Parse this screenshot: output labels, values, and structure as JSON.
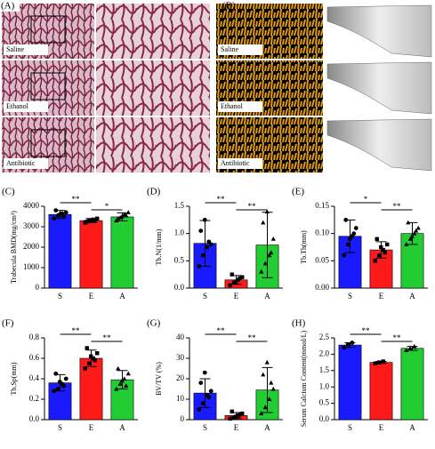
{
  "image_panels": [
    {
      "label": "(A)",
      "groups": [
        "Saline",
        "Ethanol",
        "Antibiotic"
      ]
    },
    {
      "label": "(B)",
      "groups": [
        "Saline",
        "Ethanol",
        "Antibiotic"
      ]
    }
  ],
  "chart_data": [
    {
      "type": "bar",
      "panel": "(C)",
      "ylabel": "Trabecula BMD(mg/cm³)",
      "categories": [
        "S",
        "E",
        "A"
      ],
      "colors": [
        "#1a1aff",
        "#ff1a1a",
        "#22cc33"
      ],
      "values": [
        3600,
        3300,
        3480
      ],
      "errors": [
        200,
        100,
        200
      ],
      "points": [
        [
          3400,
          3550,
          3650,
          3700,
          3800,
          3600,
          3500
        ],
        [
          3200,
          3300,
          3350,
          3400,
          3250,
          3300,
          3280
        ],
        [
          3300,
          3450,
          3600,
          3700,
          3400,
          3500,
          3550
        ]
      ],
      "ylim": [
        0,
        4000
      ],
      "yticks": [
        0,
        1000,
        2000,
        3000,
        4000
      ],
      "significance": [
        {
          "groups": [
            0,
            1
          ],
          "label": "**"
        },
        {
          "groups": [
            1,
            2
          ],
          "label": "*"
        }
      ]
    },
    {
      "type": "bar",
      "panel": "(D)",
      "ylabel": "Tb.N(1/mm)",
      "categories": [
        "S",
        "E",
        "A"
      ],
      "colors": [
        "#1a1aff",
        "#ff1a1a",
        "#22cc33"
      ],
      "values": [
        0.82,
        0.15,
        0.79
      ],
      "errors": [
        0.42,
        0.08,
        0.6
      ],
      "points": [
        [
          0.4,
          0.6,
          0.75,
          0.8,
          1.05,
          1.25,
          0.85
        ],
        [
          0.05,
          0.1,
          0.15,
          0.2,
          0.25,
          0.12,
          0.18
        ],
        [
          0.3,
          0.45,
          0.6,
          0.9,
          1.2,
          1.4,
          0.65
        ]
      ],
      "ylim": [
        0,
        1.5
      ],
      "yticks": [
        {
          "value": 0,
          "label": "0.0"
        },
        0.5,
        {
          "value": 1,
          "label": "1.0"
        },
        1.5
      ],
      "significance": [
        {
          "groups": [
            0,
            1
          ],
          "label": "**"
        },
        {
          "groups": [
            1,
            2
          ],
          "label": "**"
        }
      ]
    },
    {
      "type": "bar",
      "panel": "(E)",
      "ylabel": "Tb.Th(mm)",
      "categories": [
        "S",
        "E",
        "A"
      ],
      "colors": [
        "#1a1aff",
        "#ff1a1a",
        "#22cc33"
      ],
      "values": [
        0.095,
        0.07,
        0.1
      ],
      "errors": [
        0.03,
        0.015,
        0.02
      ],
      "points": [
        [
          0.06,
          0.08,
          0.095,
          0.11,
          0.125,
          0.09,
          0.1
        ],
        [
          0.05,
          0.06,
          0.07,
          0.08,
          0.09,
          0.075,
          0.065
        ],
        [
          0.08,
          0.09,
          0.1,
          0.11,
          0.12,
          0.095,
          0.105
        ]
      ],
      "ylim": [
        0,
        0.15
      ],
      "yticks": [
        {
          "value": 0,
          "label": "0.00"
        },
        0.05,
        {
          "value": 0.1,
          "label": "0.10"
        },
        0.15
      ],
      "significance": [
        {
          "groups": [
            0,
            1
          ],
          "label": "*"
        },
        {
          "groups": [
            1,
            2
          ],
          "label": "**"
        }
      ]
    },
    {
      "type": "bar",
      "panel": "(F)",
      "ylabel": "Tb.Sp(mm)",
      "categories": [
        "S",
        "E",
        "A"
      ],
      "colors": [
        "#1a1aff",
        "#ff1a1a",
        "#22cc33"
      ],
      "values": [
        0.36,
        0.6,
        0.39
      ],
      "errors": [
        0.08,
        0.08,
        0.09
      ],
      "points": [
        [
          0.28,
          0.3,
          0.35,
          0.4,
          0.45,
          0.37,
          0.33
        ],
        [
          0.5,
          0.55,
          0.6,
          0.65,
          0.7,
          0.62,
          0.58
        ],
        [
          0.3,
          0.35,
          0.4,
          0.45,
          0.5,
          0.38,
          0.33
        ]
      ],
      "ylim": [
        0,
        0.8
      ],
      "yticks": [
        {
          "value": 0,
          "label": "0.0"
        },
        0.2,
        0.4,
        0.6,
        0.8
      ],
      "significance": [
        {
          "groups": [
            0,
            1
          ],
          "label": "**"
        },
        {
          "groups": [
            1,
            2
          ],
          "label": "**"
        }
      ]
    },
    {
      "type": "bar",
      "panel": "(G)",
      "ylabel": "BV/TV (%)",
      "categories": [
        "S",
        "E",
        "A"
      ],
      "colors": [
        "#1a1aff",
        "#ff1a1a",
        "#22cc33"
      ],
      "values": [
        13,
        2,
        14.5
      ],
      "errors": [
        7,
        1.5,
        11
      ],
      "points": [
        [
          5,
          8,
          12,
          14,
          18,
          23,
          11
        ],
        [
          0.5,
          1,
          2,
          3,
          4,
          1.5,
          2.5
        ],
        [
          3,
          6,
          10,
          15,
          22,
          28,
          18
        ]
      ],
      "ylim": [
        0,
        40
      ],
      "yticks": [
        0,
        10,
        20,
        30,
        40
      ],
      "significance": [
        {
          "groups": [
            0,
            1
          ],
          "label": "**"
        },
        {
          "groups": [
            1,
            2
          ],
          "label": "**"
        }
      ]
    },
    {
      "type": "bar",
      "panel": "(H)",
      "ylabel": "Serum Calcium Content(mmol/L)",
      "categories": [
        "S",
        "E",
        "A"
      ],
      "colors": [
        "#1a1aff",
        "#ff1a1a",
        "#22cc33"
      ],
      "values": [
        2.28,
        1.75,
        2.18
      ],
      "errors": [
        0.07,
        0.03,
        0.06
      ],
      "points": [
        [
          2.2,
          2.3,
          2.35
        ],
        [
          1.72,
          1.75,
          1.78
        ],
        [
          2.12,
          2.18,
          2.24
        ]
      ],
      "ylim": [
        0,
        2.5
      ],
      "yticks": [
        {
          "value": 0,
          "label": "0.0"
        },
        0.5,
        {
          "value": 1,
          "label": "1.0"
        },
        1.5,
        {
          "value": 2,
          "label": "2.0"
        },
        2.5
      ],
      "significance": [
        {
          "groups": [
            0,
            1
          ],
          "label": "**"
        },
        {
          "groups": [
            1,
            2
          ],
          "label": "**"
        }
      ]
    }
  ]
}
